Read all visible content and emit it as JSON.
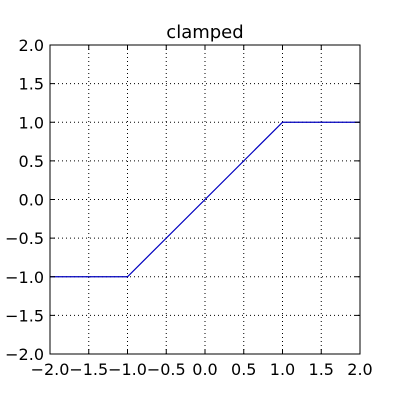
{
  "chart_data": {
    "type": "line",
    "title": "clamped",
    "xlabel": "",
    "ylabel": "",
    "xlim": [
      -2.0,
      2.0
    ],
    "ylim": [
      -2.0,
      2.0
    ],
    "grid": true,
    "x_ticks": [
      -2.0,
      -1.5,
      -1.0,
      -0.5,
      0.0,
      0.5,
      1.0,
      1.5,
      2.0
    ],
    "y_ticks": [
      -2.0,
      -1.5,
      -1.0,
      -0.5,
      0.0,
      0.5,
      1.0,
      1.5,
      2.0
    ],
    "x_tick_labels": [
      "−2.0",
      "−1.5",
      "−1.0",
      "−0.5",
      "0.0",
      "0.5",
      "1.0",
      "1.5",
      "2.0"
    ],
    "y_tick_labels": [
      "−2.0",
      "−1.5",
      "−1.0",
      "−0.5",
      "0.0",
      "0.5",
      "1.0",
      "1.5",
      "2.0"
    ],
    "series": [
      {
        "x": [
          -2.0,
          -1.0,
          1.0,
          2.0
        ],
        "y": [
          -1.0,
          -1.0,
          1.0,
          1.0
        ],
        "color": "#0000bf"
      }
    ]
  }
}
